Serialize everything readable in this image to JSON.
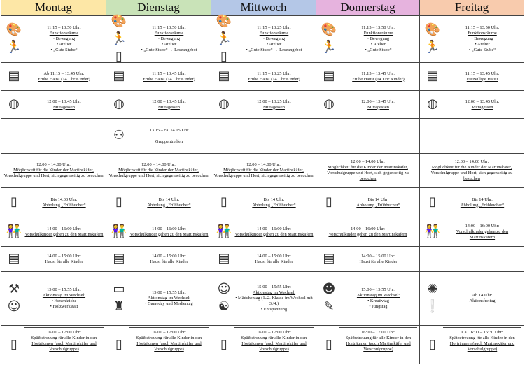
{
  "icons": {
    "palette": "🎨",
    "runner": "🏃",
    "book": "▯",
    "homework": "▤",
    "spaghetti": "◍",
    "meeting": "⚇",
    "door": "▯",
    "kids": "👫",
    "carpenter": "⚒",
    "witch": "☺",
    "tablet": "▭",
    "castle": "♜",
    "girl": "☺",
    "meditation": "☯",
    "boy": "☻",
    "brush": "✎",
    "burst": "✺",
    "exclamation": "❕"
  },
  "days": [
    {
      "name": "Montag",
      "color": "#fde7a6",
      "cells": [
        {
          "time": "11:15 – 13:50 Uhr: ",
          "title": "Funktionsräume",
          "bullets": [
            "Bewegung",
            "Atelier",
            "„Gute Stube“"
          ],
          "icons": [
            "palette",
            "runner"
          ]
        },
        {
          "time": "Ab 11:15 – 13:45 Uhr:",
          "title": "Frühe Hausi (14 Uhr Kinder)",
          "icons": [
            "homework"
          ]
        },
        {
          "time": "12:00 – 13:45 Uhr:",
          "title": "Mittagessen",
          "icons": [
            "spaghetti"
          ]
        },
        {},
        {
          "time": "12:00 – 14:00 Uhr:",
          "title": "Möglichkeit für die Kinder der Martinskäfer, Vorschulgruppe und Hort, sich gegenseitig zu besuchen"
        },
        {
          "time": "Bis 14:00 Uhr:",
          "title": "Abholung „Frühbucher“",
          "icons": [
            "door"
          ]
        },
        {
          "time": "14:00 – 16:00 Uhr:",
          "title": "Vorschulkinder gehen zu den Martinskäfern",
          "icons": [
            "kids"
          ]
        },
        {
          "time": "14:00 – 15:00 Uhr:",
          "title": "Hausi für alle Kinder",
          "icons": [
            "homework"
          ]
        },
        {
          "time": "15:00 – 15:55 Uhr:",
          "title": "Aktionstag im Wechsel:",
          "bullets": [
            "Hexenküche",
            "Holzwerkstatt"
          ],
          "icons": [
            "carpenter",
            "witch"
          ]
        },
        {
          "time": "16:00 – 17:00 Uhr:",
          "title": "Spätbetreuung für alle Kinder in den Horträumen (auch Martinskäfer und Vorschulgruppe)",
          "icons": [
            "door"
          ]
        }
      ]
    },
    {
      "name": "Dienstag",
      "color": "#c9e3b8",
      "cells": [
        {
          "time": "11:15 – 13:50 Uhr: ",
          "title": "Funktionsräume",
          "bullets": [
            "Bewegung",
            "Atelier",
            "„Gute Stube“ → Leseangebot"
          ],
          "icons": [
            "palette",
            "runner",
            "book"
          ]
        },
        {
          "time": "11:15 – 13:45 Uhr:",
          "title": "Frühe Hausi (14 Uhr Kinder)",
          "icons": [
            "homework"
          ]
        },
        {
          "time": "12:00 – 13:45 Uhr:",
          "title": "Mittagessen",
          "icons": [
            "spaghetti"
          ]
        },
        {
          "time": "13.15 – ca. 14.15 Uhr",
          "plain": "Gruppentreffen",
          "icons": [
            "meeting"
          ]
        },
        {
          "time": "12:00 – 14:00 Uhr:",
          "title": "Möglichkeit für die Kinder der Martinskäfer, Vorschulgruppe und Hort, sich gegenseitig zu besuchen"
        },
        {
          "time": "Bis 14 Uhr:",
          "title": "Abholung „Frühbucher“",
          "icons": [
            "door"
          ]
        },
        {
          "time": "14:00 – 16:00 Uhr:",
          "title": "Vorschulkinder gehen zu den Martinskäfern",
          "icons": [
            "kids"
          ]
        },
        {
          "time": "14:00 – 15:00 Uhr:",
          "title": "Hausi für alle Kinder",
          "icons": [
            "homework"
          ]
        },
        {
          "time": "15:00 – 15:55 Uhr:",
          "title": "Aktionstag im Wechsel:",
          "bullets": [
            "Gameday und Medientag"
          ],
          "icons": [
            "tablet",
            "castle"
          ]
        },
        {
          "time": "16:00 – 17:00 Uhr:",
          "title": "Spätbetreuung für alle Kinder in den Horträumen (auch Martinskäfer und Vorschulgruppe)",
          "icons": [
            "door"
          ]
        }
      ]
    },
    {
      "name": "Mittwoch",
      "color": "#b4c7e7",
      "cells": [
        {
          "time": "11:15 – 13:25 Uhr: ",
          "title": "Funktionsräume",
          "bullets": [
            "Bewegung",
            "Atelier",
            "„Gute Stube“ → Leseangebot"
          ],
          "icons": [
            "palette",
            "runner",
            "book"
          ]
        },
        {
          "time": "11:15 – 13:25 Uhr:",
          "title": "Frühe Hausi (14 Uhr Kinder)",
          "icons": [
            "homework"
          ]
        },
        {
          "time": "12:00 – 13:25 Uhr:",
          "title": "Mittagessen",
          "icons": [
            "spaghetti"
          ]
        },
        {},
        {
          "time": "12:00 – 14:00 Uhr:",
          "title": "Möglichkeit für die Kinder der Martinskäfer, Vorschulgruppe und Hort, sich gegenseitig zu besuchen"
        },
        {
          "time": "Bis 14 Uhr:",
          "title": "Abholung „Frühbucher“",
          "icons": [
            "door"
          ]
        },
        {
          "time": "14:00 – 16:00 Uhr:",
          "title": "Vorschulkinder gehen zu den Martinskäfern",
          "icons": [
            "kids"
          ]
        },
        {
          "time": "14:00 – 15:00 Uhr:",
          "title": "Hausi für alle Kinder",
          "icons": [
            "homework"
          ]
        },
        {
          "time": "15:00 – 15:55 Uhr:",
          "title": "Aktionstag im Wechsel:",
          "bullets": [
            "Mädchentag (1./2. Klasse im Wechsel mit 3./4.)",
            "Entspannung"
          ],
          "icons": [
            "girl",
            "meditation"
          ]
        },
        {
          "time": "16:00 – 17:00 Uhr:",
          "title": "Spätbetreuung für alle Kinder in den Horträumen (auch Martinskäfer und Vorschulgruppe)",
          "icons": [
            "door"
          ]
        }
      ]
    },
    {
      "name": "Donnerstag",
      "color": "#e6b3de",
      "cells": [
        {
          "time": "11:15 – 13:50 Uhr: ",
          "title": "Funktionsräume",
          "bullets": [
            "Bewegung",
            "Atelier",
            "„Gute Stube“"
          ],
          "icons": [
            "palette",
            "runner"
          ]
        },
        {
          "time": "11:15 – 13:45 Uhr:",
          "title": "Frühe Hausi (14 Uhr Kinder)",
          "icons": [
            "homework"
          ]
        },
        {
          "time": "12:00 – 13:45 Uhr:",
          "title": "Mittagessen",
          "icons": [
            "spaghetti"
          ]
        },
        {},
        {
          "time": "12:00 – 14:00 Uhr:",
          "title": "Möglichkeit für die Kinder der Martinskäfer, Vorschulgruppe und Hort, sich gegenseitig zu besuchen"
        },
        {
          "time": "Bis 14 Uhr:",
          "title": "Abholung „Frühbucher“",
          "icons": [
            "door"
          ]
        },
        {
          "time": "14:00 – 16:00 Uhr:",
          "title": "Vorschulkinder gehen zu den Martinskäfern"
        },
        {
          "time": "14:00 – 15:00 Uhr:",
          "title": "Hausi für alle Kinder",
          "icons": [
            "homework"
          ]
        },
        {
          "time": "15:00 – 15:55 Uhr:",
          "title": "Aktionstag im Wechsel:",
          "bullets": [
            "Kreativtag",
            "Jungstag"
          ],
          "icons": [
            "boy",
            "brush"
          ]
        },
        {
          "time": "16:00 – 17:00 Uhr:",
          "title": "Spätbetreuung für alle Kinder in den Horträumen (auch Martinskäfer und Vorschulgruppe)",
          "icons": [
            "door"
          ]
        }
      ]
    },
    {
      "name": "Freitag",
      "color": "#f8cbad",
      "cells": [
        {
          "time": "11:15 – 13:50 Uhr: ",
          "title": "Funktionsräume",
          "bullets": [
            "Bewegung",
            "Atelier",
            "„Gute Stube“"
          ],
          "icons": [
            "palette",
            "runner"
          ]
        },
        {
          "time": "11:15 – 13:45 Uhr:",
          "title": "Freiwillige Hausi",
          "icons": [
            "homework"
          ]
        },
        {
          "time": "12:00 – 13:45 Uhr:",
          "title": "Mittagessen",
          "icons": [
            "spaghetti"
          ]
        },
        {},
        {
          "time": "12:00 – 14:00 Uhr:",
          "title": "Möglichkeit für die Kinder der Martinskäfer, Vorschulgruppe und Hort, sich gegenseitig zu besuchen"
        },
        {
          "time": "Bis 14 Uhr:",
          "title": "Abholung „Frühbucher“",
          "icons": [
            "door"
          ]
        },
        {
          "time": "14:00 – 16:00 Uhr:",
          "title": "Vorschulkinder gehen zu den Martinskäfern",
          "icons": [
            "kids"
          ]
        },
        {},
        {
          "time": "Ab 14 Uhr:",
          "title": "Aktionsfreitag",
          "icons": [
            "burst",
            "exclamation"
          ]
        },
        {
          "time": "Ca. 16:00 – 16:30 Uhr:",
          "title": "Spätbetreuung für alle Kinder in den Horträumen (auch Martinskäfer und Vorschulgruppe)",
          "icons": [
            "door"
          ]
        }
      ]
    }
  ]
}
